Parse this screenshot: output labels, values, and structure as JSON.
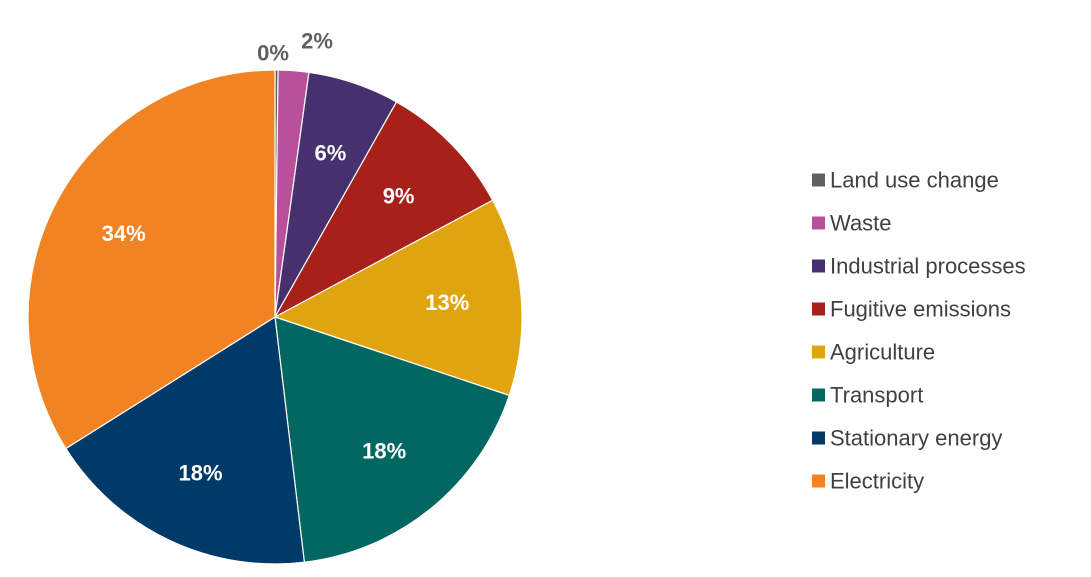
{
  "chart_data": {
    "type": "pie",
    "start_angle_deg": 0,
    "direction": "clockwise",
    "legend_position": "right",
    "slices": [
      {
        "name": "Land use change",
        "value": 0.2,
        "label": "0%",
        "color": "#606060",
        "label_color": "#606060",
        "label_outside": true
      },
      {
        "name": "Waste",
        "value": 2,
        "label": "2%",
        "color": "#B9509A",
        "label_color": "#606060",
        "label_outside": true
      },
      {
        "name": "Industrial processes",
        "value": 6,
        "label": "6%",
        "color": "#46306E",
        "label_color": "#ffffff",
        "label_outside": false
      },
      {
        "name": "Fugitive emissions",
        "value": 9,
        "label": "9%",
        "color": "#A8201A",
        "label_color": "#ffffff",
        "label_outside": false
      },
      {
        "name": "Agriculture",
        "value": 13,
        "label": "13%",
        "color": "#DFA40F",
        "label_color": "#ffffff",
        "label_outside": false
      },
      {
        "name": "Transport",
        "value": 18,
        "label": "18%",
        "color": "#006860",
        "label_color": "#ffffff",
        "label_outside": false
      },
      {
        "name": "Stationary energy",
        "value": 18,
        "label": "18%",
        "color": "#003A68",
        "label_color": "#ffffff",
        "label_outside": false
      },
      {
        "name": "Electricity",
        "value": 34,
        "label": "34%",
        "color": "#F28325",
        "label_color": "#ffffff",
        "label_outside": false
      }
    ]
  }
}
